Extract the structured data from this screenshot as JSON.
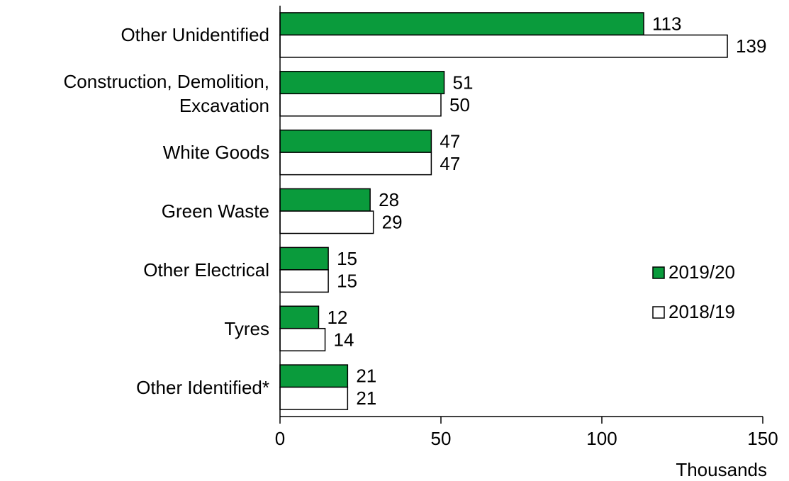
{
  "chart_data": {
    "type": "hbar",
    "categories": [
      "Other Unidentified",
      "Construction, Demolition,\nExcavation",
      "White Goods",
      "Green Waste",
      "Other Electrical",
      "Tyres",
      "Other Identified*"
    ],
    "series": [
      {
        "name": "2019/20",
        "color": "#0a9b3c",
        "values": [
          113,
          51,
          47,
          28,
          15,
          12,
          21
        ]
      },
      {
        "name": "2018/19",
        "color": "#ffffff",
        "values": [
          139,
          50,
          47,
          29,
          15,
          14,
          21
        ]
      }
    ],
    "xlim": [
      0,
      150
    ],
    "xticks": [
      0,
      50,
      100,
      150
    ],
    "xlabel": "Thousands",
    "legend": "right"
  }
}
